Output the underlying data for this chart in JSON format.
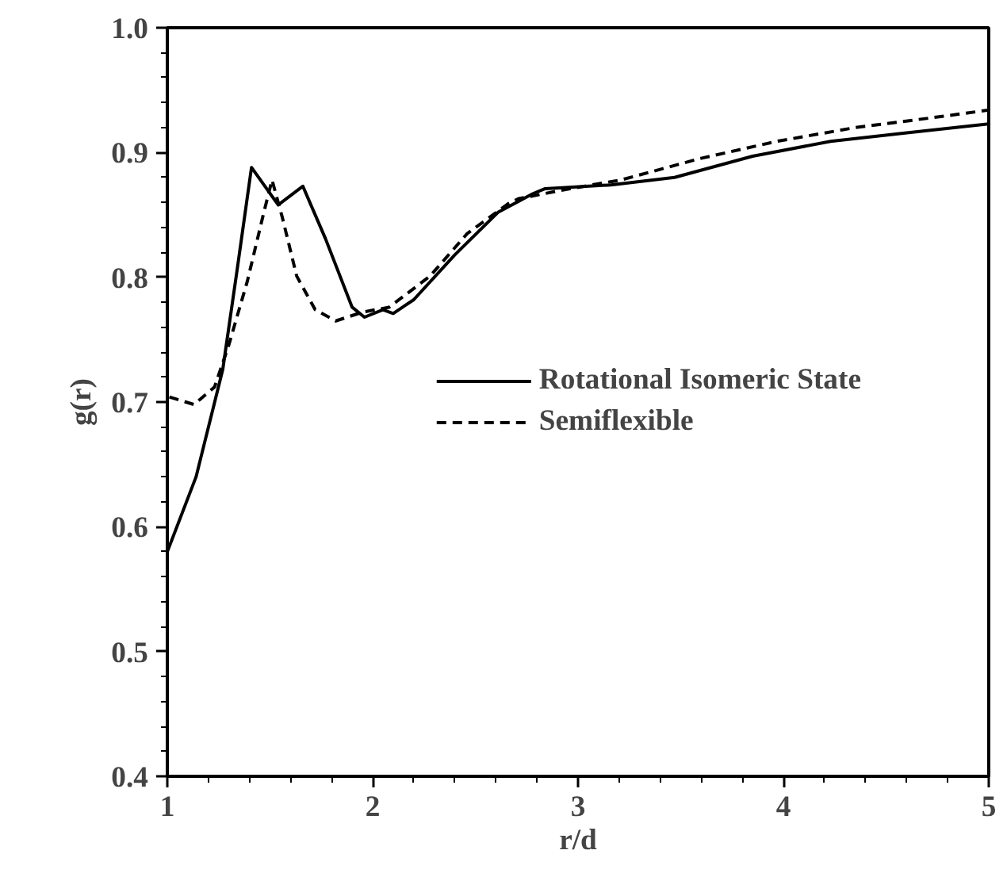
{
  "chart_data": {
    "type": "line",
    "xlabel": "r/d",
    "ylabel": "g(r)",
    "xlim": [
      1,
      5
    ],
    "ylim": [
      0.4,
      1.0
    ],
    "xticks": [
      1,
      2,
      3,
      4,
      5
    ],
    "yticks": [
      {
        "value": 0.4,
        "label": "0.4"
      },
      {
        "value": 0.5,
        "label": "0.5"
      },
      {
        "value": 0.6,
        "label": "0.6"
      },
      {
        "value": 0.7,
        "label": "0.7"
      },
      {
        "value": 0.8,
        "label": "0.8"
      },
      {
        "value": 0.9,
        "label": "0.9"
      },
      {
        "value": 1.0,
        "label": "1.0"
      }
    ],
    "grid": false,
    "legend": "center right",
    "marker": "none",
    "series": [
      {
        "name": "Rotational Isomeric State",
        "color": "#000000",
        "line_style": "solid",
        "x": [
          1.0,
          1.14,
          1.27,
          1.34,
          1.41,
          1.54,
          1.66,
          1.77,
          1.9,
          1.96,
          2.05,
          2.1,
          2.2,
          2.4,
          2.61,
          2.78,
          2.84,
          3.16,
          3.47,
          3.85,
          4.23,
          4.61,
          5.0
        ],
        "values": [
          0.58,
          0.64,
          0.726,
          0.806,
          0.888,
          0.858,
          0.873,
          0.831,
          0.776,
          0.768,
          0.774,
          0.771,
          0.782,
          0.818,
          0.852,
          0.867,
          0.871,
          0.874,
          0.88,
          0.897,
          0.909,
          0.916,
          0.923
        ]
      },
      {
        "name": "Semiflexible",
        "color": "#000000",
        "line_style": "dashed",
        "x": [
          1.01,
          1.13,
          1.23,
          1.3,
          1.39,
          1.47,
          1.51,
          1.56,
          1.63,
          1.72,
          1.82,
          1.95,
          2.08,
          2.28,
          2.46,
          2.66,
          2.71,
          2.96,
          3.21,
          3.59,
          3.97,
          4.35,
          4.73,
          5.0
        ],
        "values": [
          0.704,
          0.698,
          0.712,
          0.746,
          0.797,
          0.852,
          0.878,
          0.848,
          0.801,
          0.774,
          0.765,
          0.772,
          0.776,
          0.801,
          0.835,
          0.859,
          0.863,
          0.871,
          0.878,
          0.895,
          0.909,
          0.92,
          0.928,
          0.934
        ]
      }
    ]
  }
}
